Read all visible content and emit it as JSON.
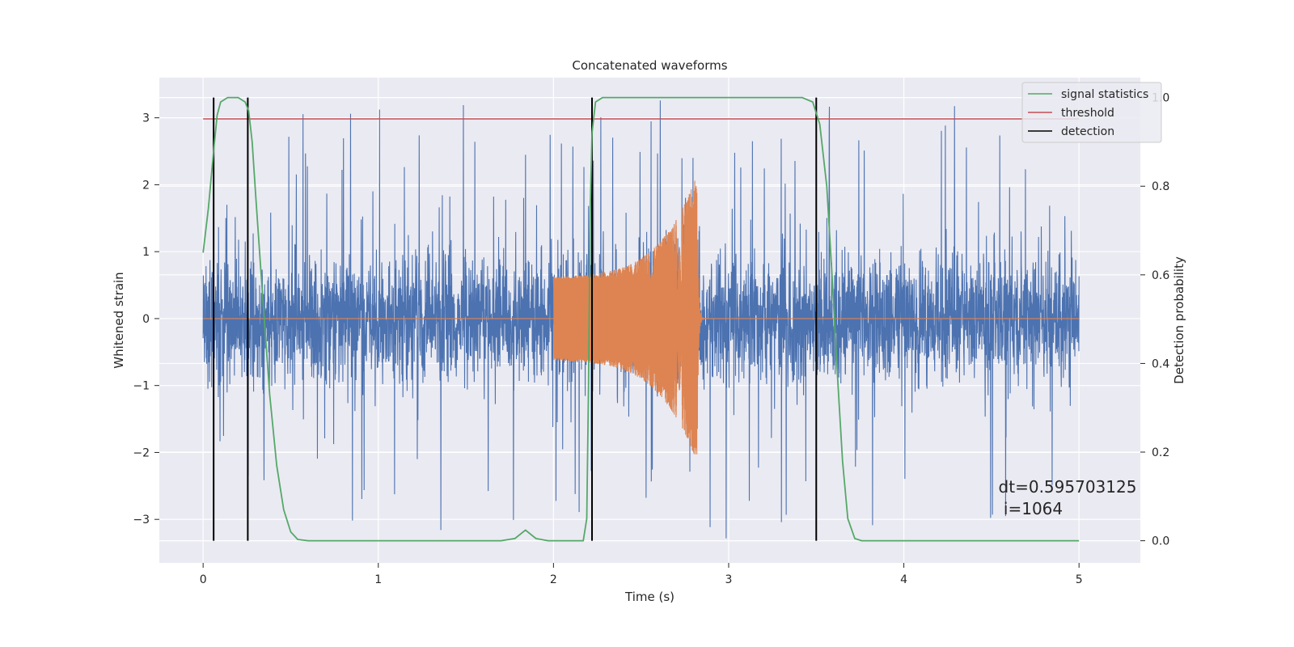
{
  "chart_data": {
    "type": "line",
    "title": "Concatenated waveforms",
    "xlabel": "Time (s)",
    "ylabel": "Whitened strain",
    "y2label": "Detection probability",
    "xlim": [
      -0.25,
      5.35
    ],
    "ylim": [
      -3.65,
      3.6
    ],
    "y2lim": [
      -0.05,
      1.045
    ],
    "xticks": [
      0,
      1,
      2,
      3,
      4,
      5
    ],
    "xtick_labels": [
      "0",
      "1",
      "2",
      "3",
      "4",
      "5"
    ],
    "yticks": [
      -3,
      -2,
      -1,
      0,
      1,
      2,
      3
    ],
    "ytick_labels": [
      "−3",
      "−2",
      "−1",
      "0",
      "1",
      "2",
      "3"
    ],
    "y2ticks": [
      0.0,
      0.2,
      0.4,
      0.6,
      0.8,
      1.0
    ],
    "y2tick_labels": [
      "0.0",
      "0.2",
      "0.4",
      "0.6",
      "0.8",
      "1.0"
    ],
    "grid": true,
    "legend_position": "top-right",
    "background_color": "#eaeaf2",
    "series": [
      {
        "key": "noise",
        "axis": "left",
        "color": "#4c72b0",
        "kind": "noisy-strain",
        "t_range": [
          0,
          5
        ],
        "amplitude_range": [
          -3.35,
          3.3
        ]
      },
      {
        "key": "chirp",
        "axis": "left",
        "color": "#dd8452",
        "kind": "chirp",
        "start_time": 2.0,
        "end_time": 2.82,
        "start_amplitude": 0.62,
        "peak_amplitude": 2.0
      },
      {
        "key": "signal-statistics",
        "name": "signal statistics",
        "axis": "right",
        "color": "#55a868",
        "points": [
          [
            0.0,
            0.65
          ],
          [
            0.03,
            0.75
          ],
          [
            0.06,
            0.88
          ],
          [
            0.08,
            0.96
          ],
          [
            0.1,
            0.99
          ],
          [
            0.14,
            1.0
          ],
          [
            0.2,
            1.0
          ],
          [
            0.24,
            0.99
          ],
          [
            0.26,
            0.97
          ],
          [
            0.28,
            0.9
          ],
          [
            0.3,
            0.78
          ],
          [
            0.34,
            0.55
          ],
          [
            0.38,
            0.33
          ],
          [
            0.42,
            0.17
          ],
          [
            0.46,
            0.07
          ],
          [
            0.5,
            0.02
          ],
          [
            0.54,
            0.003
          ],
          [
            0.6,
            0.0
          ],
          [
            1.7,
            0.0
          ],
          [
            1.78,
            0.005
          ],
          [
            1.84,
            0.024
          ],
          [
            1.9,
            0.005
          ],
          [
            1.97,
            0.0
          ],
          [
            2.17,
            0.0
          ],
          [
            2.19,
            0.05
          ],
          [
            2.2,
            0.35
          ],
          [
            2.21,
            0.75
          ],
          [
            2.22,
            0.92
          ],
          [
            2.24,
            0.99
          ],
          [
            2.28,
            1.0
          ],
          [
            3.42,
            1.0
          ],
          [
            3.48,
            0.99
          ],
          [
            3.52,
            0.94
          ],
          [
            3.56,
            0.8
          ],
          [
            3.59,
            0.6
          ],
          [
            3.62,
            0.38
          ],
          [
            3.65,
            0.18
          ],
          [
            3.68,
            0.05
          ],
          [
            3.72,
            0.005
          ],
          [
            3.76,
            0.0
          ],
          [
            5.0,
            0.0
          ]
        ]
      },
      {
        "key": "threshold",
        "name": "threshold",
        "axis": "right",
        "color": "#c44e52",
        "x": [
          0,
          5
        ],
        "y": [
          0.952,
          0.952
        ]
      },
      {
        "key": "detection",
        "name": "detection",
        "axis": "right",
        "color": "#000000",
        "times": [
          0.06,
          0.255,
          2.22,
          3.5
        ],
        "y_range": [
          0.0,
          1.0
        ]
      }
    ],
    "annotation": {
      "line1": "dt=0.595703125",
      "line2": " i=1064",
      "x": 4.54,
      "y": -2.6
    }
  }
}
